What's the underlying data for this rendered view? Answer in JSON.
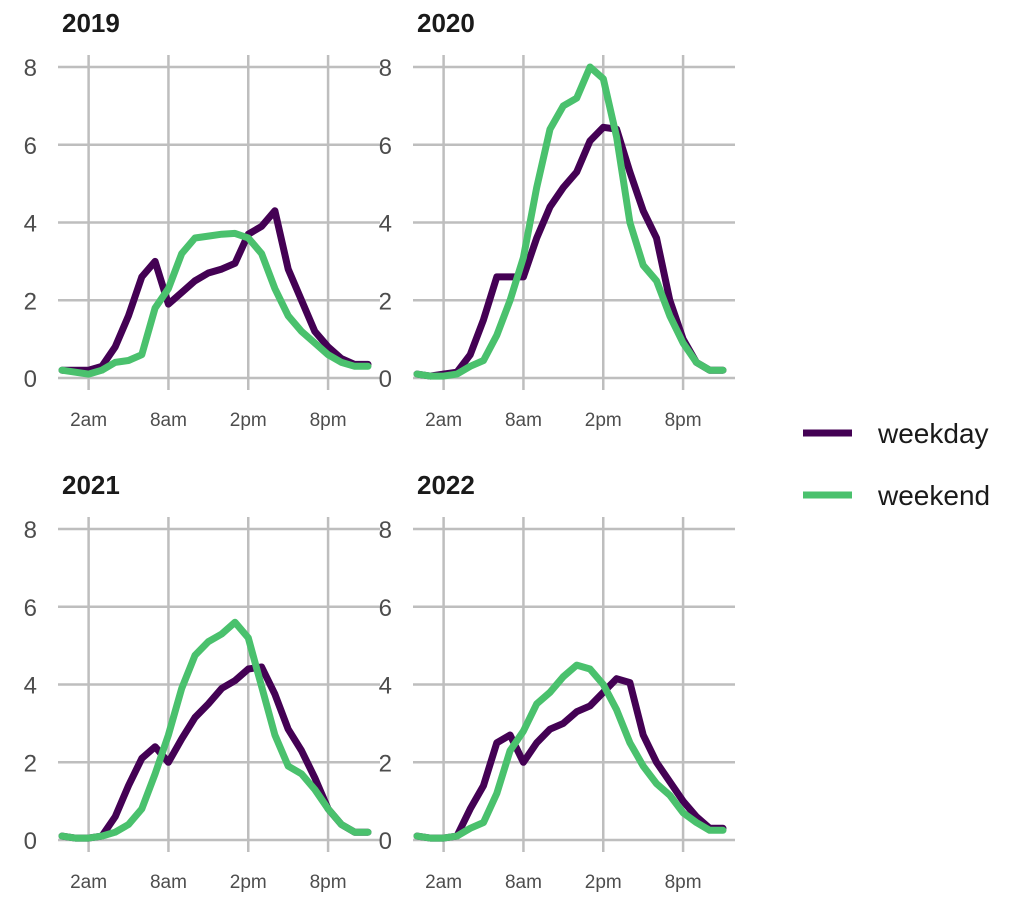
{
  "chart_data": {
    "type": "line",
    "facet_by": "year",
    "ylim": [
      0,
      8
    ],
    "yticks": [
      0,
      2,
      4,
      6,
      8
    ],
    "xlim": [
      0,
      23
    ],
    "xticks": [
      {
        "hour": 2,
        "label": "2am"
      },
      {
        "hour": 8,
        "label": "8am"
      },
      {
        "hour": 14,
        "label": "2pm"
      },
      {
        "hour": 20,
        "label": "8pm"
      }
    ],
    "grid": true,
    "legend": {
      "position": "right",
      "entries": [
        {
          "name": "weekday",
          "color": "#440154"
        },
        {
          "name": "weekend",
          "color": "#4ac16d"
        }
      ]
    },
    "panels": [
      {
        "title": "2019",
        "series": [
          {
            "name": "weekday",
            "color": "#440154",
            "x": [
              0,
              1,
              2,
              3,
              4,
              5,
              6,
              7,
              8,
              9,
              10,
              11,
              12,
              13,
              14,
              15,
              16,
              17,
              18,
              19,
              20,
              21,
              22,
              23
            ],
            "y": [
              0.2,
              0.2,
              0.2,
              0.3,
              0.8,
              1.6,
              2.6,
              3.0,
              1.9,
              2.2,
              2.5,
              2.7,
              2.8,
              2.95,
              3.7,
              3.9,
              4.3,
              2.8,
              2.0,
              1.2,
              0.8,
              0.5,
              0.35,
              0.35
            ]
          },
          {
            "name": "weekend",
            "color": "#4ac16d",
            "x": [
              0,
              1,
              2,
              3,
              4,
              5,
              6,
              7,
              8,
              9,
              10,
              11,
              12,
              13,
              14,
              15,
              16,
              17,
              18,
              19,
              20,
              21,
              22,
              23
            ],
            "y": [
              0.2,
              0.15,
              0.1,
              0.2,
              0.4,
              0.45,
              0.6,
              1.8,
              2.3,
              3.2,
              3.6,
              3.65,
              3.7,
              3.72,
              3.6,
              3.2,
              2.3,
              1.6,
              1.2,
              0.9,
              0.6,
              0.4,
              0.3,
              0.3
            ]
          }
        ]
      },
      {
        "title": "2020",
        "series": [
          {
            "name": "weekday",
            "color": "#440154",
            "x": [
              0,
              1,
              2,
              3,
              4,
              5,
              6,
              7,
              8,
              9,
              10,
              11,
              12,
              13,
              14,
              15,
              16,
              17,
              18,
              19,
              20,
              21,
              22,
              23
            ],
            "y": [
              0.1,
              0.05,
              0.1,
              0.15,
              0.6,
              1.5,
              2.6,
              2.6,
              2.6,
              3.6,
              4.4,
              4.9,
              5.3,
              6.1,
              6.45,
              6.4,
              5.3,
              4.3,
              3.6,
              2.0,
              1.0,
              0.4,
              0.2,
              0.2
            ]
          },
          {
            "name": "weekend",
            "color": "#4ac16d",
            "x": [
              0,
              1,
              2,
              3,
              4,
              5,
              6,
              7,
              8,
              9,
              10,
              11,
              12,
              13,
              14,
              15,
              16,
              17,
              18,
              19,
              20,
              21,
              22,
              23
            ],
            "y": [
              0.1,
              0.05,
              0.05,
              0.1,
              0.3,
              0.45,
              1.1,
              2.0,
              3.1,
              4.9,
              6.4,
              7.0,
              7.2,
              8.0,
              7.7,
              6.2,
              4.0,
              2.9,
              2.5,
              1.6,
              0.9,
              0.4,
              0.2,
              0.2
            ]
          }
        ]
      },
      {
        "title": "2021",
        "series": [
          {
            "name": "weekday",
            "color": "#440154",
            "x": [
              0,
              1,
              2,
              3,
              4,
              5,
              6,
              7,
              8,
              9,
              10,
              11,
              12,
              13,
              14,
              15,
              16,
              17,
              18,
              19,
              20,
              21,
              22,
              23
            ],
            "y": [
              0.1,
              0.05,
              0.05,
              0.1,
              0.6,
              1.4,
              2.1,
              2.4,
              2.0,
              2.6,
              3.15,
              3.5,
              3.9,
              4.1,
              4.4,
              4.45,
              3.75,
              2.85,
              2.3,
              1.6,
              0.8,
              0.4,
              0.2,
              0.2
            ]
          },
          {
            "name": "weekend",
            "color": "#4ac16d",
            "x": [
              0,
              1,
              2,
              3,
              4,
              5,
              6,
              7,
              8,
              9,
              10,
              11,
              12,
              13,
              14,
              15,
              16,
              17,
              18,
              19,
              20,
              21,
              22,
              23
            ],
            "y": [
              0.1,
              0.05,
              0.05,
              0.1,
              0.2,
              0.4,
              0.8,
              1.7,
              2.7,
              3.9,
              4.75,
              5.1,
              5.3,
              5.6,
              5.2,
              3.95,
              2.7,
              1.9,
              1.7,
              1.3,
              0.8,
              0.4,
              0.2,
              0.2
            ]
          }
        ]
      },
      {
        "title": "2022",
        "series": [
          {
            "name": "weekday",
            "color": "#440154",
            "x": [
              0,
              1,
              2,
              3,
              4,
              5,
              6,
              7,
              8,
              9,
              10,
              11,
              12,
              13,
              14,
              15,
              16,
              17,
              18,
              19,
              20,
              21,
              22,
              23
            ],
            "y": [
              0.1,
              0.05,
              0.05,
              0.1,
              0.8,
              1.4,
              2.5,
              2.7,
              2.0,
              2.5,
              2.85,
              3.0,
              3.3,
              3.45,
              3.8,
              4.15,
              4.05,
              2.7,
              2.0,
              1.5,
              1.0,
              0.6,
              0.3,
              0.3
            ]
          },
          {
            "name": "weekend",
            "color": "#4ac16d",
            "x": [
              0,
              1,
              2,
              3,
              4,
              5,
              6,
              7,
              8,
              9,
              10,
              11,
              12,
              13,
              14,
              15,
              16,
              17,
              18,
              19,
              20,
              21,
              22,
              23
            ],
            "y": [
              0.1,
              0.05,
              0.05,
              0.1,
              0.3,
              0.45,
              1.2,
              2.3,
              2.8,
              3.5,
              3.8,
              4.2,
              4.5,
              4.4,
              4.0,
              3.35,
              2.5,
              1.9,
              1.45,
              1.15,
              0.7,
              0.45,
              0.25,
              0.25
            ]
          }
        ]
      }
    ]
  }
}
